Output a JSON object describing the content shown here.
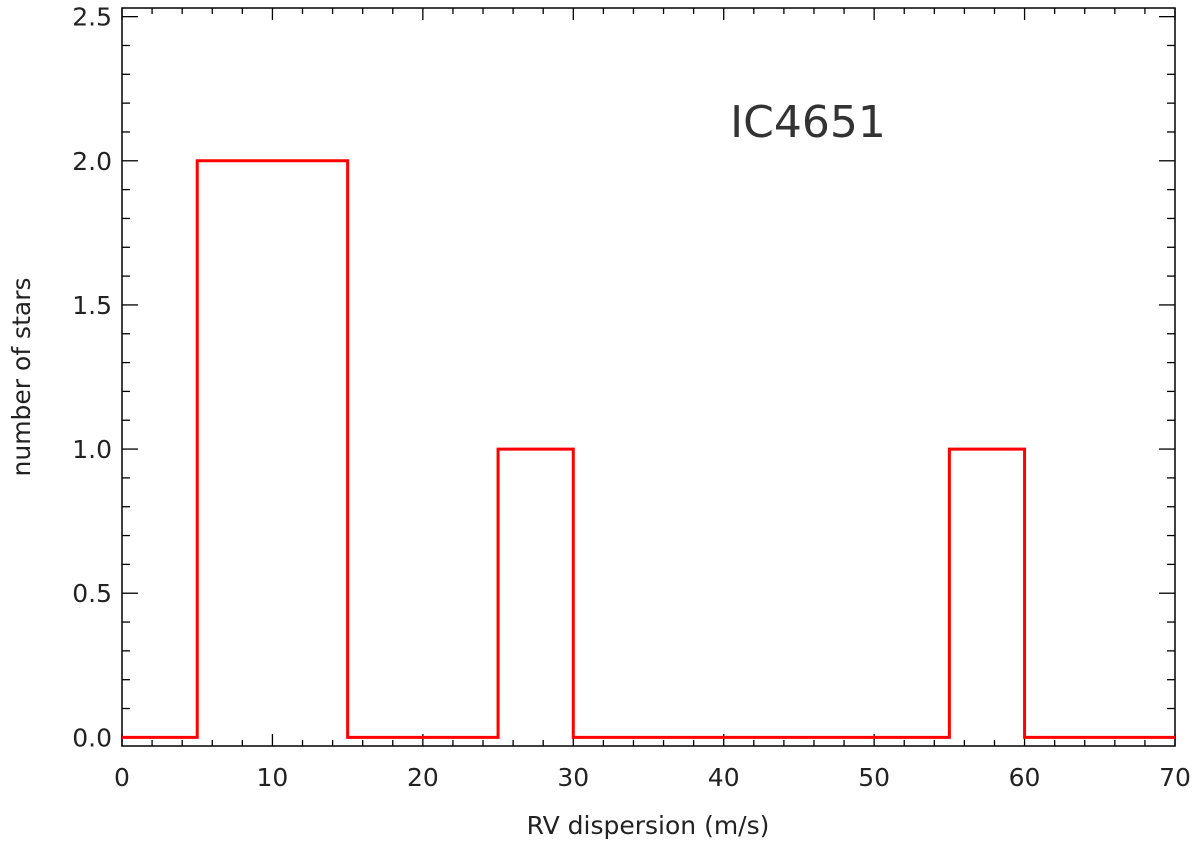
{
  "chart_data": {
    "type": "bar",
    "histogram": true,
    "xlabel": "RV dispersion (m/s)",
    "ylabel": "number of stars",
    "annotation": "IC4651",
    "xlim": [
      0,
      70
    ],
    "ylim": [
      -0.03,
      2.53
    ],
    "x_ticks": [
      "0",
      "10",
      "20",
      "30",
      "40",
      "50",
      "60",
      "70"
    ],
    "y_ticks": [
      "0.0",
      "0.5",
      "1.0",
      "1.5",
      "2.0",
      "2.5"
    ],
    "bins": [
      {
        "from": 0,
        "to": 5,
        "value": 0
      },
      {
        "from": 5,
        "to": 15,
        "value": 2
      },
      {
        "from": 15,
        "to": 25,
        "value": 0
      },
      {
        "from": 25,
        "to": 30,
        "value": 1
      },
      {
        "from": 30,
        "to": 55,
        "value": 0
      },
      {
        "from": 55,
        "to": 60,
        "value": 1
      },
      {
        "from": 60,
        "to": 70,
        "value": 0
      }
    ],
    "series_color": "#ff0000",
    "grid": false
  }
}
